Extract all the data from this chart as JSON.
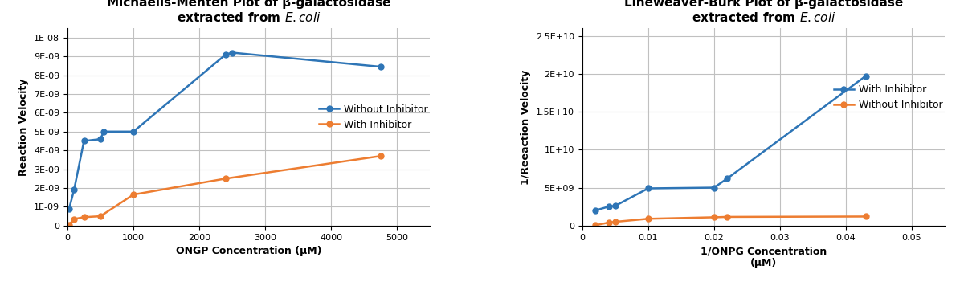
{
  "plot1": {
    "title_line1": "Michaelis-Menten Plot of β-galactosidase",
    "title_line2": "extracted from ",
    "xlabel": "ONGP Concentration (μM)",
    "ylabel": "Reaction Velocity",
    "without_inhibitor_x": [
      25,
      100,
      250,
      500,
      550,
      1000,
      2400,
      2500,
      4750
    ],
    "without_inhibitor_y": [
      9e-10,
      1.9e-09,
      4.5e-09,
      4.6e-09,
      5e-09,
      5e-09,
      9.1e-09,
      9.2e-09,
      8.45e-09
    ],
    "with_inhibitor_x": [
      25,
      100,
      250,
      500,
      1000,
      2400,
      4750
    ],
    "with_inhibitor_y": [
      5e-11,
      3.5e-10,
      4.5e-10,
      5e-10,
      1.65e-09,
      2.5e-09,
      3.7e-09
    ],
    "xlim": [
      0,
      5500
    ],
    "ylim": [
      0,
      1.05e-08
    ],
    "yticks": [
      0,
      1e-09,
      2e-09,
      3e-09,
      4e-09,
      5e-09,
      6e-09,
      7e-09,
      8e-09,
      9e-09,
      1e-08
    ],
    "xticks": [
      0,
      1000,
      2000,
      3000,
      4000,
      5000
    ],
    "legend_without": "Without Inhibitor",
    "legend_with": "With Inhibitor",
    "color_without": "#2E75B6",
    "color_with": "#ED7D31"
  },
  "plot2": {
    "title_line1": "Lineweaver-Burk Plot of β-galactosidase",
    "title_line2": "extracted from ",
    "xlabel_line1": "1/ONPG Concentration",
    "xlabel_line2": "(μM)",
    "ylabel": "1/Reeaction Velocity",
    "with_inhibitor_x": [
      0.002,
      0.004,
      0.005,
      0.01,
      0.02,
      0.022,
      0.043
    ],
    "with_inhibitor_y": [
      2000000000.0,
      2500000000.0,
      2600000000.0,
      4900000000.0,
      5000000000.0,
      6200000000.0,
      19700000000.0
    ],
    "without_inhibitor_x": [
      0.002,
      0.004,
      0.005,
      0.01,
      0.02,
      0.022,
      0.043
    ],
    "without_inhibitor_y": [
      50000000.0,
      400000000.0,
      500000000.0,
      900000000.0,
      1100000000.0,
      1150000000.0,
      1200000000.0
    ],
    "xlim": [
      0,
      0.055
    ],
    "ylim": [
      0,
      26000000000.0
    ],
    "yticks": [
      0,
      5000000000.0,
      10000000000.0,
      15000000000.0,
      20000000000.0,
      25000000000.0
    ],
    "xticks": [
      0,
      0.01,
      0.02,
      0.03,
      0.04,
      0.05
    ],
    "legend_with": "With Inhibitor",
    "legend_without": "Without Inhibitor",
    "color_with": "#2E75B6",
    "color_without": "#ED7D31"
  },
  "background_color": "#FFFFFF",
  "grid_color": "#C0C0C0",
  "title_fontsize": 11,
  "label_fontsize": 9,
  "tick_fontsize": 8,
  "legend_fontsize": 9
}
